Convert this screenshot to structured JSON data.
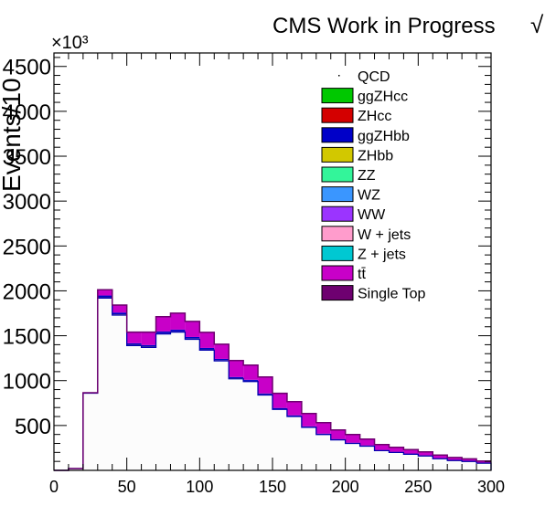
{
  "header": {
    "title": "CMS Work in Progress",
    "title_suffix": "√",
    "exponent_label": "×10³",
    "ylabel_fragment": "Events/10"
  },
  "legend": {
    "placement": "top-right",
    "entries": [
      {
        "name": "QCD",
        "color": "#ffffff",
        "marker": "dot"
      },
      {
        "name": "ggZHcc",
        "color": "#00c800"
      },
      {
        "name": "ZHcc",
        "color": "#d40000"
      },
      {
        "name": "ggZHbb",
        "color": "#0000c8"
      },
      {
        "name": "ZHbb",
        "color": "#d2c800"
      },
      {
        "name": "ZZ",
        "color": "#33f59a"
      },
      {
        "name": "WZ",
        "color": "#3a96ff"
      },
      {
        "name": "WW",
        "color": "#9b34ff"
      },
      {
        "name": "W + jets",
        "color": "#ff9ccc"
      },
      {
        "name": "Z + jets",
        "color": "#00c8d2"
      },
      {
        "name": "tt̄",
        "color": "#c800c8"
      },
      {
        "name": "Single Top",
        "color": "#6e0070"
      }
    ]
  },
  "chart_data": {
    "type": "bar",
    "subtype": "stacked-histogram",
    "title": "CMS Work in Progress",
    "xlim": [
      0,
      300
    ],
    "ylim": [
      0,
      4650
    ],
    "y_unit_multiplier": 1000,
    "x_ticks": [
      0,
      50,
      100,
      150,
      200,
      250,
      300
    ],
    "y_ticks": [
      500,
      1000,
      1500,
      2000,
      2500,
      3000,
      3500,
      4000,
      4500
    ],
    "bin_edges": [
      0,
      10,
      20,
      30,
      40,
      50,
      60,
      70,
      80,
      90,
      100,
      110,
      120,
      130,
      140,
      150,
      160,
      170,
      180,
      190,
      200,
      210,
      220,
      230,
      240,
      250,
      260,
      270,
      280,
      290,
      300
    ],
    "series": [
      {
        "name": "QCD",
        "color": "#fcfcfc",
        "values": [
          0,
          20,
          860,
          1920,
          1730,
          1390,
          1370,
          1520,
          1540,
          1460,
          1340,
          1220,
          1020,
          990,
          840,
          680,
          600,
          480,
          400,
          340,
          300,
          270,
          220,
          200,
          180,
          160,
          130,
          110,
          100,
          80
        ]
      },
      {
        "name": "ZHbb",
        "color": "#d2c800",
        "values": [
          0,
          0,
          0,
          8,
          8,
          8,
          8,
          8,
          8,
          8,
          8,
          8,
          8,
          8,
          7,
          6,
          5,
          4,
          4,
          3,
          3,
          3,
          2,
          2,
          2,
          2,
          2,
          1,
          1,
          1
        ]
      },
      {
        "name": "ggZHbb",
        "color": "#0000c8",
        "values": [
          0,
          0,
          5,
          20,
          20,
          18,
          18,
          20,
          20,
          18,
          16,
          14,
          12,
          11,
          10,
          9,
          8,
          6,
          5,
          5,
          4,
          4,
          3,
          3,
          3,
          3,
          2,
          2,
          2,
          2
        ]
      },
      {
        "name": "tt̄",
        "color": "#c800c8",
        "values": [
          0,
          0,
          0,
          60,
          80,
          120,
          140,
          160,
          180,
          170,
          170,
          160,
          180,
          160,
          180,
          160,
          150,
          140,
          120,
          100,
          90,
          70,
          60,
          50,
          45,
          40,
          35,
          30,
          25,
          20
        ]
      },
      {
        "name": "Single Top",
        "color": "#6e0070",
        "values": [
          0,
          0,
          0,
          4,
          4,
          4,
          4,
          4,
          4,
          4,
          4,
          4,
          4,
          4,
          4,
          3,
          3,
          3,
          3,
          2,
          2,
          2,
          2,
          2,
          2,
          1,
          1,
          1,
          1,
          1
        ]
      }
    ]
  }
}
